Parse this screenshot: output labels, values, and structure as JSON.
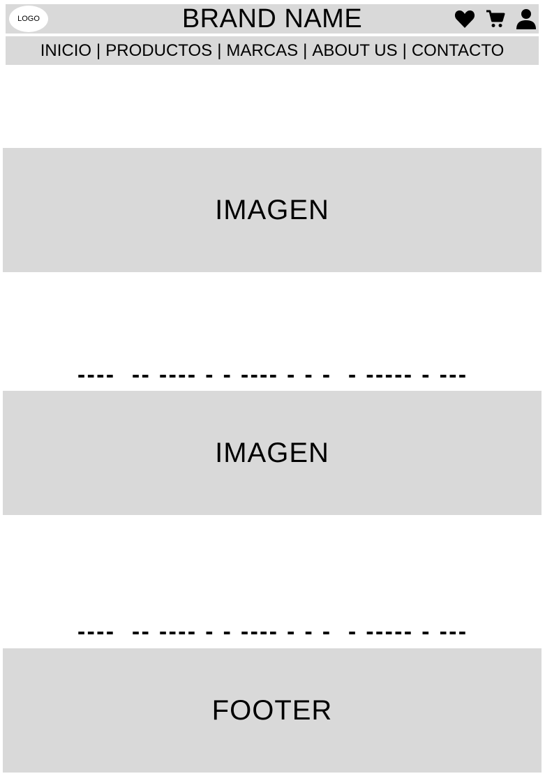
{
  "header": {
    "logo_label": "LOGO",
    "brand_name": "BRAND NAME",
    "icons": [
      "heart-icon",
      "cart-icon",
      "user-icon"
    ]
  },
  "nav": {
    "items": [
      "INICIO",
      "PRODUCTOS",
      "MARCAS",
      "ABOUT US",
      "CONTACTO"
    ],
    "separator": "|"
  },
  "sections": [
    {
      "lines": [
        "----  -- ---- - - ---- - - -  - ----- - ---",
        "--- ---- ----- ---- --"
      ]
    },
    {
      "image_label": "IMAGEN"
    },
    {
      "lines": [
        "----  -- ---- - - ---- - - -  - ----- - ---",
        "--- ---- ----- ---- --"
      ]
    },
    {
      "image_label": "IMAGEN"
    },
    {
      "lines": [
        "----  -- ---- - - ---- - - -  - ----- - ---",
        "--- ---- ----- ---- --"
      ]
    }
  ],
  "footer": {
    "label": "FOOTER"
  },
  "colors": {
    "panel_gray": "#d9d9d9",
    "background": "#ffffff",
    "text": "#000000"
  }
}
